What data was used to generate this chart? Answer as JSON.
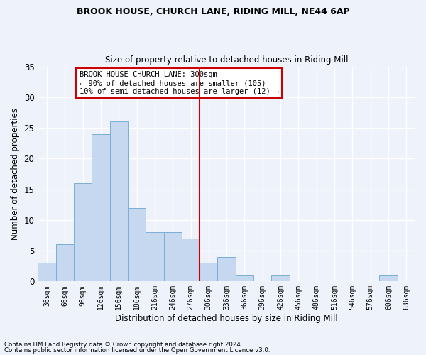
{
  "title": "BROOK HOUSE, CHURCH LANE, RIDING MILL, NE44 6AP",
  "subtitle": "Size of property relative to detached houses in Riding Mill",
  "xlabel": "Distribution of detached houses by size in Riding Mill",
  "ylabel": "Number of detached properties",
  "bin_labels": [
    "36sqm",
    "66sqm",
    "96sqm",
    "126sqm",
    "156sqm",
    "186sqm",
    "216sqm",
    "246sqm",
    "276sqm",
    "306sqm",
    "336sqm",
    "366sqm",
    "396sqm",
    "426sqm",
    "456sqm",
    "486sqm",
    "516sqm",
    "546sqm",
    "576sqm",
    "606sqm",
    "636sqm"
  ],
  "bar_values": [
    3,
    6,
    16,
    24,
    26,
    12,
    8,
    8,
    7,
    3,
    4,
    1,
    0,
    1,
    0,
    0,
    0,
    0,
    0,
    1,
    0
  ],
  "bar_color": "#c5d8f0",
  "bar_edge_color": "#7bafd4",
  "background_color": "#eef2fb",
  "grid_color": "#ffffff",
  "vline_x": 8.5,
  "vline_color": "#cc0000",
  "annotation_text": "BROOK HOUSE CHURCH LANE: 300sqm\n← 90% of detached houses are smaller (105)\n10% of semi-detached houses are larger (12) →",
  "annotation_box_color": "#ffffff",
  "annotation_box_edge": "#cc0000",
  "ylim": [
    0,
    35
  ],
  "yticks": [
    0,
    5,
    10,
    15,
    20,
    25,
    30,
    35
  ],
  "footnote1": "Contains HM Land Registry data © Crown copyright and database right 2024.",
  "footnote2": "Contains public sector information licensed under the Open Government Licence v3.0."
}
